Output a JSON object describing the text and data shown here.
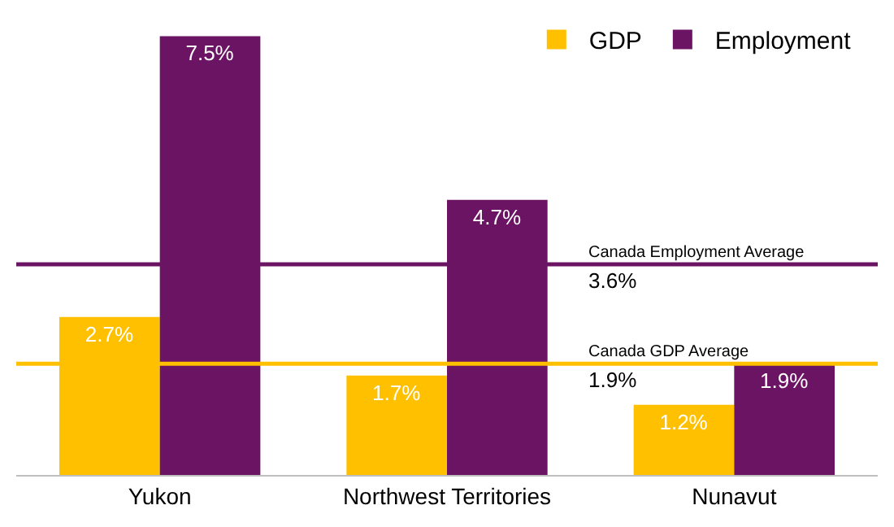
{
  "chart_data": {
    "type": "bar",
    "categories": [
      "Yukon",
      "Northwest Territories",
      "Nunavut"
    ],
    "series": [
      {
        "name": "GDP",
        "color": "#ffc000",
        "values": [
          2.7,
          1.7,
          1.2
        ],
        "value_labels": [
          "2.7%",
          "1.7%",
          "1.2%"
        ]
      },
      {
        "name": "Employment",
        "color": "#6b1463",
        "values": [
          7.5,
          4.7,
          1.9
        ],
        "value_labels": [
          "7.5%",
          "4.7%",
          "1.9%"
        ]
      }
    ],
    "ref_lines": [
      {
        "axis": "y",
        "value": 3.6,
        "label": "Canada Employment Average",
        "color": "#6b1463"
      },
      {
        "axis": "y",
        "value": 1.9,
        "label": "Canada GDP Average",
        "color": "#ffc000"
      }
    ],
    "annotations": [
      {
        "text": "3.6%",
        "y": 3.6
      },
      {
        "text": "1.9%",
        "y": 1.9
      }
    ],
    "legend": "top right",
    "grid": false
  }
}
